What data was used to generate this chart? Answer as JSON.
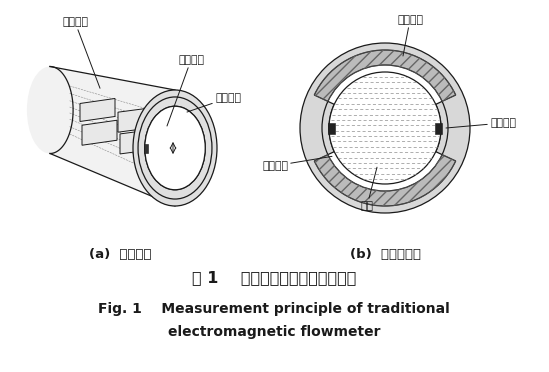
{
  "bg_color": "#ffffff",
  "fig_width": 5.49,
  "fig_height": 3.72,
  "dpi": 100,
  "caption_zh": "图 1    传统电磁流量计测量原理图",
  "caption_en1": "Fig. 1    Measurement principle of traditional",
  "caption_en2": "electromagnetic flowmeter",
  "label_a": "(a)  轴测简图",
  "label_b": "(b)  横截面简图",
  "label_coil_a": "电磁线圈",
  "label_electrode_a": "测量电极",
  "label_liner_a": "绝缘衬里",
  "label_coil_b": "电磁线圈",
  "label_electrode_b": "测量电极",
  "label_liner_b": "绝缘衬里",
  "label_fluid_b": "流体",
  "line_color": "#1a1a1a",
  "fill_body": "#f2f2f2",
  "fill_liner": "#e0e0e0",
  "fill_coil_hatch": "#bbbbbb",
  "fill_fluid": "#f5f5f5",
  "fill_outer_ring": "#d8d8d8"
}
